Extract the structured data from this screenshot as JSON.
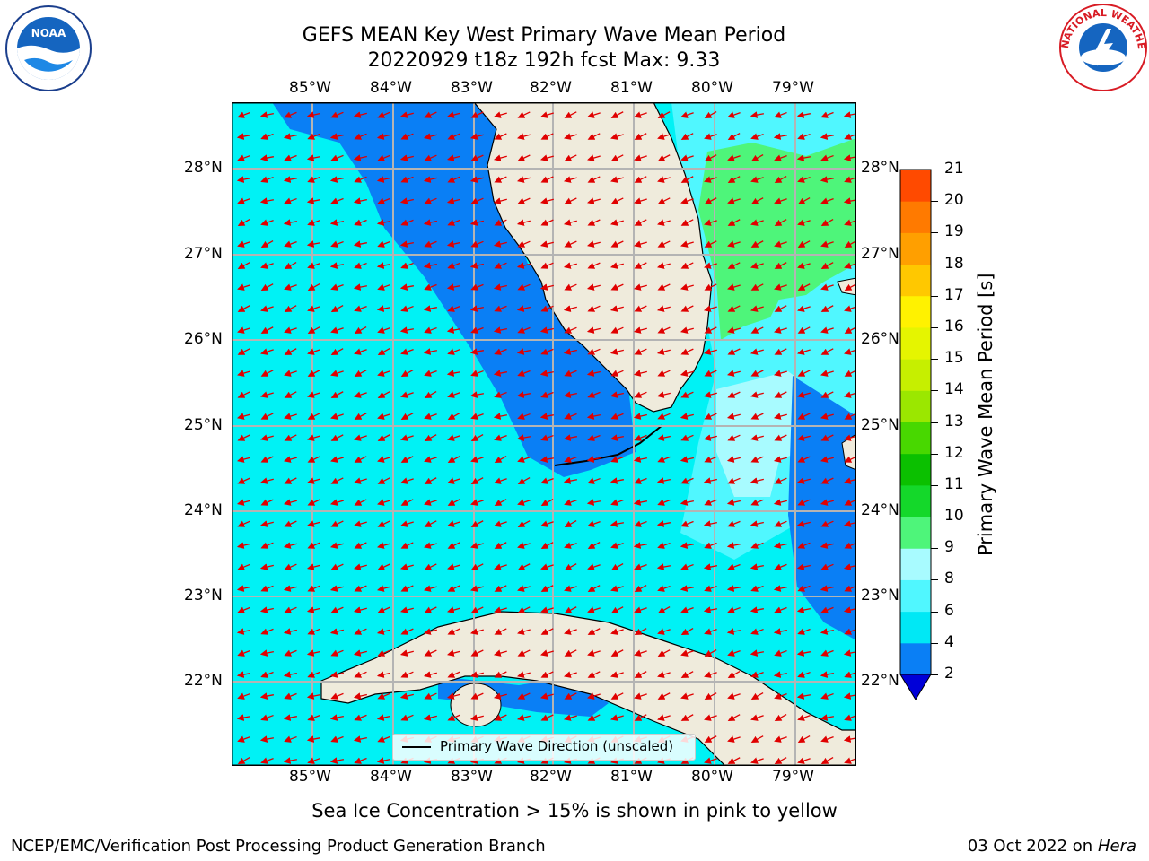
{
  "title_line1": "GEFS MEAN Key West Primary Wave Mean Period",
  "title_line2": "20220929 t18z 192h fcst    Max: 9.33",
  "lon_ticks": [
    "85°W",
    "84°W",
    "83°W",
    "82°W",
    "81°W",
    "80°W",
    "79°W"
  ],
  "lat_ticks": [
    "28°N",
    "27°N",
    "26°N",
    "25°N",
    "24°N",
    "23°N",
    "22°N"
  ],
  "legend_label": "Primary Wave Direction (unscaled)",
  "colorbar": {
    "label": "Primary Wave Mean Period [s]",
    "ticks": [
      "2",
      "4",
      "6",
      "8",
      "9",
      "10",
      "11",
      "12",
      "13",
      "14",
      "15",
      "16",
      "17",
      "18",
      "19",
      "20",
      "21"
    ],
    "colors": [
      "#0a7ff5",
      "#00e8f5",
      "#50f7ff",
      "#a8fbff",
      "#4ef57a",
      "#14d82a",
      "#0bc000",
      "#48d800",
      "#9be700",
      "#c6ef00",
      "#e5f500",
      "#fff200",
      "#ffc800",
      "#ff9f00",
      "#ff7a00",
      "#ff4a00",
      "#ff1400"
    ],
    "under_color": "#0000d8"
  },
  "footer_note": "Sea Ice Concentration > 15% is shown in pink to yellow",
  "footer_left": "NCEP/EMC/Verification Post Processing Product Generation Branch",
  "footer_right_date": "03 Oct 2022 on ",
  "footer_right_host": "Hera",
  "logos": {
    "left": "NOAA",
    "right": "NATIONAL WEATHER SERVICE"
  }
}
